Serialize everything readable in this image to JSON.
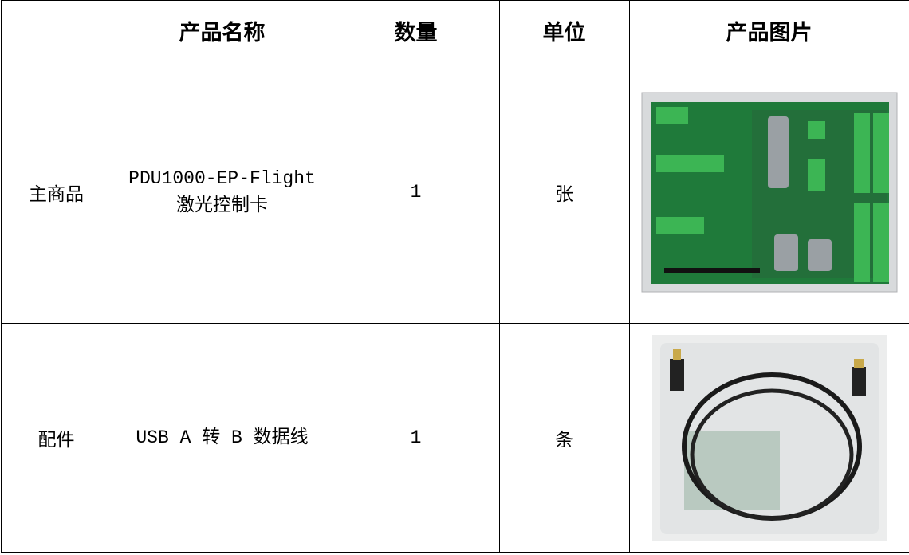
{
  "table": {
    "header": [
      "产品名称",
      "数量",
      "单位",
      "产品图片"
    ],
    "rows": [
      {
        "type": "主商品",
        "name": [
          "PDU1000-EP-Flight",
          "激光控制卡"
        ],
        "qty": 1,
        "unit": "张"
      },
      {
        "type": "配件",
        "name": [
          "USB A 转 B 数据线"
        ],
        "qty": 1,
        "unit": "条"
      }
    ]
  }
}
